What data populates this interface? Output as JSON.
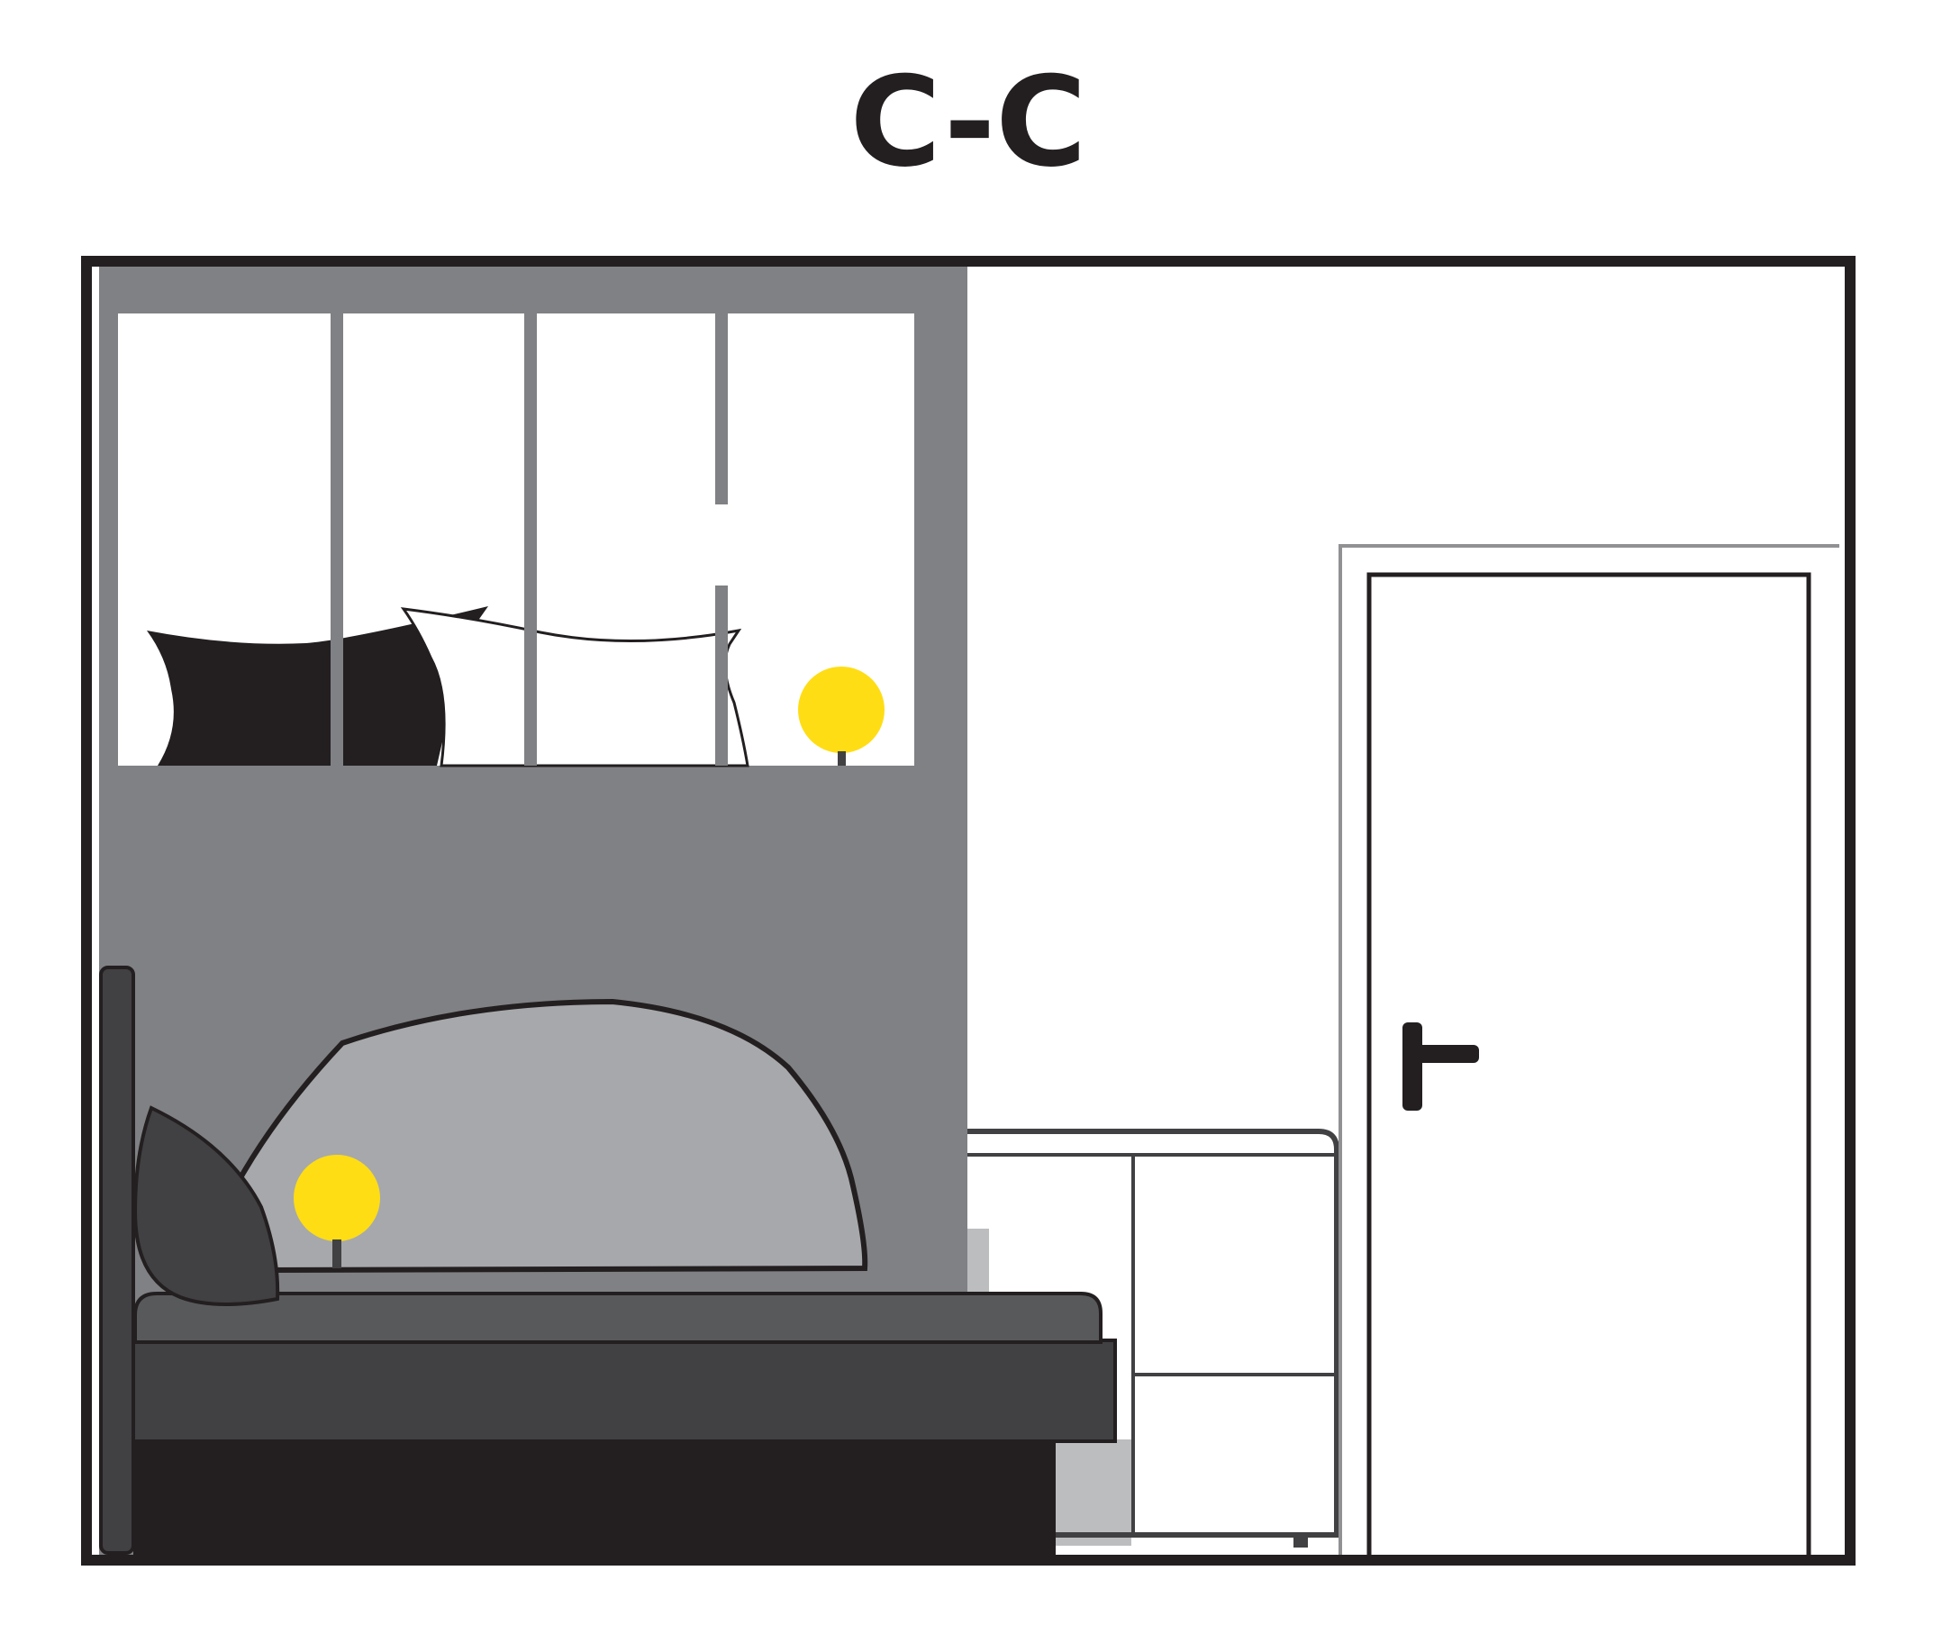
{
  "section_label": "C-C",
  "colors": {
    "wall_accent": "#808184",
    "outline": "#231f20",
    "frame_grey": "#919194",
    "headboard": "#a7a8ab",
    "pillow_dark": "#414042",
    "mattress": "#58595b",
    "bed_base": "#414042",
    "under_bed": "#231f20",
    "lamp_yellow": "#ffdd15",
    "cabinet_shadow": "#bcbdbf"
  },
  "icons": [
    "window-frame-icon",
    "door-handle-icon",
    "lamp-icon",
    "bed-icon",
    "door-icon"
  ]
}
